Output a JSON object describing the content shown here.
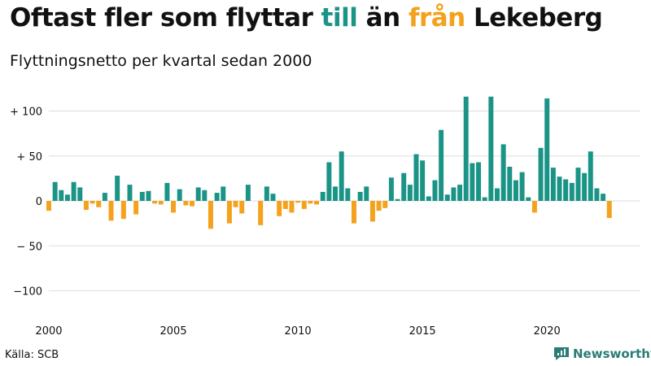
{
  "title": {
    "part1": "Oftast fler som flyttar ",
    "till": "till",
    "part2": " än ",
    "fran": "från",
    "part3": " Lekeberg"
  },
  "subtitle": "Flyttningsnetto per kvartal sedan 2000",
  "source": "Källa: SCB",
  "brand": "Newsworthy",
  "colors": {
    "positive": "#1a9486",
    "negative": "#f4a11c",
    "grid": "#dddddd",
    "brand": "#2a7d74"
  },
  "chart_data": {
    "type": "bar",
    "title": "Oftast fler som flyttar till än från Lekeberg",
    "subtitle": "Flyttningsnetto per kvartal sedan 2000",
    "x_start": 2000,
    "x_step": 0.25,
    "xlim": [
      2000,
      2023.75
    ],
    "ylim": [
      -110,
      120
    ],
    "yticks": [
      100,
      50,
      0,
      -50,
      -100
    ],
    "ytick_labels": [
      "+ 100",
      "+  50",
      "0",
      "− 50",
      "−100"
    ],
    "xticks": [
      2000,
      2005,
      2010,
      2015,
      2020
    ],
    "xtick_labels": [
      "2000",
      "2005",
      "2010",
      "2015",
      "2020"
    ],
    "grid": true,
    "values": [
      -11,
      21,
      12,
      7,
      21,
      15,
      -10,
      -3,
      -7,
      9,
      -22,
      28,
      -20,
      18,
      -15,
      10,
      11,
      -3,
      -4,
      20,
      -13,
      13,
      -5,
      -6,
      15,
      12,
      -31,
      9,
      16,
      -25,
      -7,
      -14,
      18,
      0,
      -27,
      16,
      8,
      -17,
      -9,
      -13,
      -2,
      -9,
      -3,
      -4,
      10,
      43,
      16,
      55,
      14,
      -25,
      10,
      16,
      -23,
      -11,
      -8,
      26,
      2,
      31,
      18,
      52,
      45,
      5,
      23,
      79,
      7,
      15,
      18,
      116,
      42,
      43,
      4,
      116,
      14,
      63,
      38,
      23,
      32,
      4,
      -13,
      59,
      114,
      37,
      27,
      24,
      20,
      37,
      31,
      55,
      14,
      8,
      -19
    ]
  }
}
